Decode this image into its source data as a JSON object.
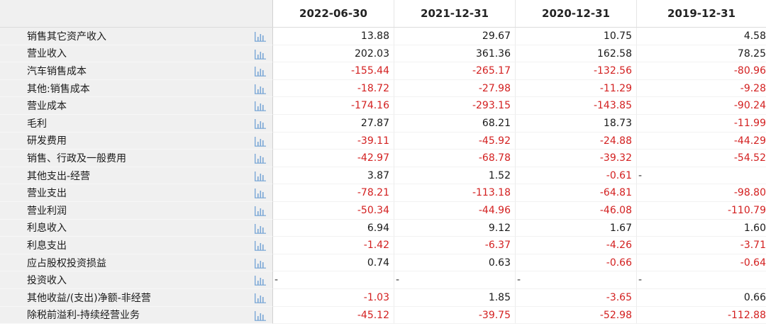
{
  "header": {
    "dates": [
      "2022-06-30",
      "2021-12-31",
      "2020-12-31",
      "2019-12-31"
    ]
  },
  "colors": {
    "negative": "#d32020",
    "positive": "#1a1a1a",
    "chart_icon": "#7aa7d6"
  },
  "rows": [
    {
      "label": "销售其它资产收入",
      "values": [
        "13.88",
        "29.67",
        "10.75",
        "4.58"
      ]
    },
    {
      "label": "营业收入",
      "values": [
        "202.03",
        "361.36",
        "162.58",
        "78.25"
      ]
    },
    {
      "label": "汽车销售成本",
      "values": [
        "-155.44",
        "-265.17",
        "-132.56",
        "-80.96"
      ]
    },
    {
      "label": "其他:销售成本",
      "values": [
        "-18.72",
        "-27.98",
        "-11.29",
        "-9.28"
      ]
    },
    {
      "label": "营业成本",
      "values": [
        "-174.16",
        "-293.15",
        "-143.85",
        "-90.24"
      ]
    },
    {
      "label": "毛利",
      "values": [
        "27.87",
        "68.21",
        "18.73",
        "-11.99"
      ]
    },
    {
      "label": "研发费用",
      "values": [
        "-39.11",
        "-45.92",
        "-24.88",
        "-44.29"
      ]
    },
    {
      "label": "销售、行政及一般费用",
      "values": [
        "-42.97",
        "-68.78",
        "-39.32",
        "-54.52"
      ]
    },
    {
      "label": "其他支出-经营",
      "values": [
        "3.87",
        "1.52",
        "-0.61",
        "-"
      ]
    },
    {
      "label": "营业支出",
      "values": [
        "-78.21",
        "-113.18",
        "-64.81",
        "-98.80"
      ]
    },
    {
      "label": "营业利润",
      "values": [
        "-50.34",
        "-44.96",
        "-46.08",
        "-110.79"
      ]
    },
    {
      "label": "利息收入",
      "values": [
        "6.94",
        "9.12",
        "1.67",
        "1.60"
      ]
    },
    {
      "label": "利息支出",
      "values": [
        "-1.42",
        "-6.37",
        "-4.26",
        "-3.71"
      ]
    },
    {
      "label": "应占股权投资损益",
      "values": [
        "0.74",
        "0.63",
        "-0.66",
        "-0.64"
      ]
    },
    {
      "label": "投资收入",
      "values": [
        "-",
        "-",
        "-",
        "-"
      ]
    },
    {
      "label": "其他收益/(支出)净额-非经营",
      "values": [
        "-1.03",
        "1.85",
        "-3.65",
        "0.66"
      ]
    },
    {
      "label": "除税前溢利-持续经营业务",
      "values": [
        "-45.12",
        "-39.75",
        "-52.98",
        "-112.88"
      ]
    }
  ],
  "chart_icon_name": "bar-chart-icon"
}
